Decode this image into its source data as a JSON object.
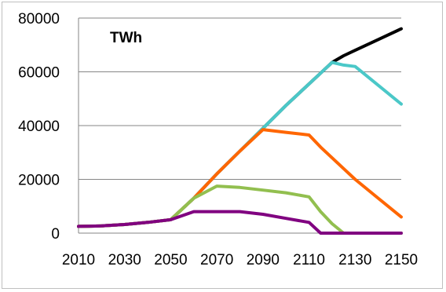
{
  "chart_data": {
    "type": "line",
    "annotation": "TWh",
    "x": [
      2010,
      2020,
      2030,
      2040,
      2050,
      2060,
      2070,
      2080,
      2090,
      2100,
      2110,
      2115,
      2120,
      2125,
      2130,
      2140,
      2150
    ],
    "xticks": [
      "2010",
      "2030",
      "2050",
      "2070",
      "2090",
      "2110",
      "2130",
      "2150"
    ],
    "xlim": [
      2010,
      2150
    ],
    "ylim": [
      0,
      80000
    ],
    "yticks": [
      "0",
      "20000",
      "40000",
      "60000",
      "80000"
    ],
    "grid": "horizontal",
    "legend": "none",
    "series": [
      {
        "color": "#000000",
        "values": [
          2500,
          2700,
          3200,
          4000,
          5000,
          13000,
          22000,
          30500,
          39000,
          47500,
          55500,
          59500,
          63500,
          66000,
          68000,
          72000,
          76000
        ]
      },
      {
        "color": "#4bc8c8",
        "values": [
          2500,
          2700,
          3200,
          4000,
          5000,
          13000,
          22000,
          30500,
          39000,
          47500,
          55500,
          59500,
          63500,
          62500,
          62000,
          55000,
          48000
        ]
      },
      {
        "color": "#ff6600",
        "values": [
          2500,
          2700,
          3200,
          4000,
          5000,
          13000,
          22000,
          30500,
          38500,
          37500,
          36500,
          32000,
          28000,
          24000,
          20000,
          13000,
          6000
        ]
      },
      {
        "color": "#92bf4f",
        "values": [
          2500,
          2700,
          3200,
          4000,
          5000,
          13000,
          17500,
          17000,
          16000,
          15000,
          13500,
          8000,
          3500,
          0,
          0,
          0,
          0
        ]
      },
      {
        "color": "#800080",
        "values": [
          2500,
          2700,
          3200,
          4000,
          5000,
          8000,
          8000,
          8000,
          7000,
          5500,
          4000,
          0,
          0,
          0,
          0,
          0,
          0
        ]
      }
    ]
  }
}
